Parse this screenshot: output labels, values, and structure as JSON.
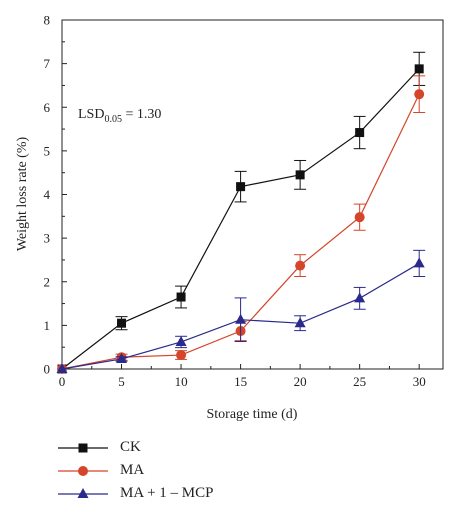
{
  "chart_data": {
    "type": "line",
    "xlabel": "Storage time (d)",
    "ylabel": "Weight loss rate (%)",
    "xlim": [
      0,
      32
    ],
    "ylim": [
      0,
      8
    ],
    "xticks": [
      0,
      5,
      10,
      15,
      20,
      25,
      30
    ],
    "yticks": [
      0,
      1,
      2,
      3,
      4,
      5,
      6,
      7,
      8
    ],
    "grid": false,
    "legend_position": "below",
    "annotation": {
      "base": "LSD",
      "subscript": "0.05",
      "rest": " = 1.30"
    },
    "x": [
      0,
      5,
      10,
      15,
      20,
      25,
      30
    ],
    "series": [
      {
        "name": "CK",
        "marker": "square",
        "color": "#111111",
        "values": [
          0,
          1.05,
          1.65,
          4.18,
          4.45,
          5.42,
          6.88
        ],
        "errors": [
          0,
          0.15,
          0.25,
          0.35,
          0.33,
          0.37,
          0.38
        ]
      },
      {
        "name": "MA",
        "marker": "circle",
        "color": "#d4452a",
        "values": [
          0,
          0.27,
          0.32,
          0.87,
          2.37,
          3.48,
          6.3
        ],
        "errors": [
          0,
          0.07,
          0.1,
          0.22,
          0.25,
          0.3,
          0.42
        ]
      },
      {
        "name": "MA + 1 – MCP",
        "marker": "triangle",
        "color": "#2a2a8c",
        "values": [
          0,
          0.23,
          0.62,
          1.13,
          1.05,
          1.62,
          2.42
        ],
        "errors": [
          0,
          0.05,
          0.13,
          0.5,
          0.17,
          0.25,
          0.3
        ]
      }
    ]
  }
}
